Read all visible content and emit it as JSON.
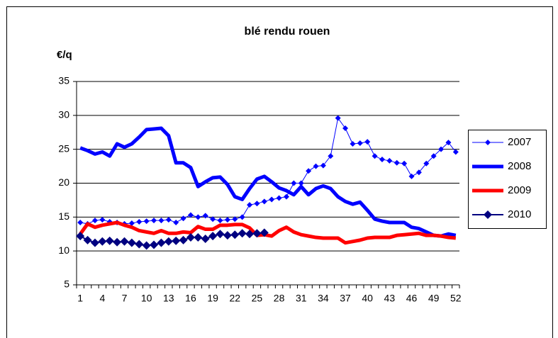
{
  "chart_data": {
    "type": "line",
    "title": "blé rendu rouen",
    "y_label": "€/q",
    "categories": [
      1,
      null,
      null,
      4,
      null,
      null,
      7,
      null,
      null,
      10,
      null,
      null,
      13,
      null,
      null,
      16,
      null,
      null,
      19,
      null,
      null,
      22,
      null,
      null,
      25,
      null,
      null,
      28,
      null,
      null,
      31,
      null,
      null,
      34,
      null,
      null,
      37,
      null,
      null,
      40,
      null,
      null,
      43,
      null,
      null,
      46,
      null,
      null,
      49,
      null,
      null,
      52
    ],
    "ylim": [
      5,
      35
    ],
    "yticks": [
      5,
      10,
      15,
      20,
      25,
      30,
      35
    ],
    "grid": true,
    "legend": "right",
    "series": [
      {
        "name": "2007",
        "color": "#0000ff",
        "line_width": 1,
        "marker": "diamond",
        "marker_size": 4,
        "values": [
          14.2,
          14,
          14.5,
          14.6,
          14.3,
          14.2,
          14,
          14.1,
          14.3,
          14.4,
          14.5,
          14.5,
          14.6,
          14.2,
          14.8,
          15.3,
          15,
          15.2,
          14.7,
          14.5,
          14.6,
          14.7,
          15,
          16.8,
          17,
          17.3,
          17.6,
          17.8,
          18,
          20,
          20,
          21.8,
          22.5,
          22.6,
          24,
          29.6,
          28.1,
          25.8,
          25.9,
          26.1,
          24,
          23.5,
          23.3,
          23,
          22.9,
          21,
          21.6,
          22.9,
          24,
          25,
          26,
          24.6
        ]
      },
      {
        "name": "2008",
        "color": "#0000ff",
        "line_width": 5,
        "marker": "none",
        "marker_size": 0,
        "values": [
          25.2,
          24.8,
          24.3,
          24.6,
          24,
          25.8,
          25.3,
          25.8,
          26.8,
          27.9,
          28,
          28.1,
          27,
          23,
          23,
          22.3,
          19.5,
          20.2,
          20.8,
          20.9,
          19.8,
          18,
          17.6,
          19.2,
          20.6,
          21,
          20.2,
          19.3,
          18.9,
          18.3,
          19.5,
          18.3,
          19.2,
          19.6,
          19.2,
          18,
          17.3,
          16.9,
          17.2,
          16,
          14.7,
          14.4,
          14.2,
          14.2,
          14.2,
          13.5,
          13.3,
          12.8,
          12.3,
          12.2,
          12.5,
          12.3
        ]
      },
      {
        "name": "2009",
        "color": "#ff0000",
        "line_width": 5,
        "marker": "none",
        "marker_size": 0,
        "values": [
          12.5,
          14,
          13.5,
          13.8,
          14,
          14.2,
          13.8,
          13.5,
          13,
          12.8,
          12.6,
          13,
          12.6,
          12.6,
          12.8,
          12.7,
          13.6,
          13.2,
          13.2,
          13.8,
          13.8,
          13.9,
          13.9,
          13.4,
          12.3,
          12.4,
          12.2,
          13,
          13.5,
          12.8,
          12.4,
          12.2,
          12,
          11.9,
          11.9,
          11.9,
          11.2,
          11.4,
          11.6,
          11.9,
          12,
          12,
          12,
          12.3,
          12.4,
          12.5,
          12.6,
          12.3,
          12.3,
          12.2,
          12,
          11.9
        ]
      },
      {
        "name": "2010",
        "color": "#000080",
        "line_width": 2,
        "marker": "diamond",
        "marker_size": 6,
        "values": [
          12.2,
          11.6,
          11.2,
          11.4,
          11.5,
          11.3,
          11.4,
          11.2,
          11,
          10.8,
          10.9,
          11.2,
          11.4,
          11.5,
          11.6,
          12,
          12,
          11.8,
          12.2,
          12.5,
          12.3,
          12.4,
          12.6,
          12.5,
          12.6,
          12.7,
          null,
          null,
          null,
          null,
          null,
          null,
          null,
          null,
          null,
          null,
          null,
          null,
          null,
          null,
          null,
          null,
          null,
          null,
          null,
          null,
          null,
          null,
          null,
          null,
          null,
          null
        ]
      }
    ]
  }
}
